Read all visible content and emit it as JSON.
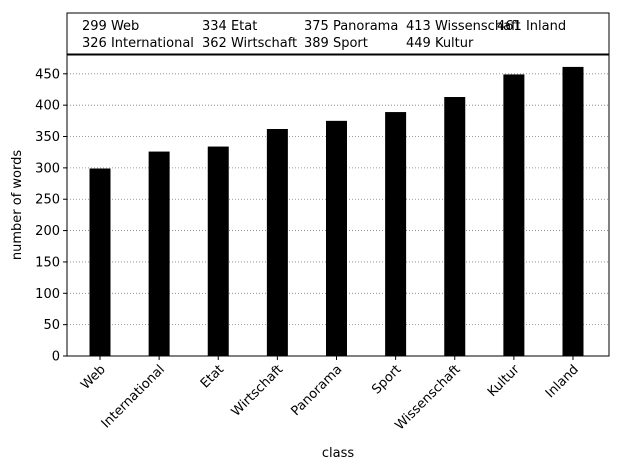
{
  "chart_data": {
    "type": "bar",
    "categories": [
      "Web",
      "International",
      "Etat",
      "Wirtschaft",
      "Panorama",
      "Sport",
      "Wissenschaft",
      "Kultur",
      "Inland"
    ],
    "values": [
      299,
      326,
      334,
      362,
      375,
      389,
      413,
      449,
      461
    ],
    "xlabel": "class",
    "ylabel": "number of words",
    "ylim": [
      0,
      480
    ],
    "yticks": [
      0,
      50,
      100,
      150,
      200,
      250,
      300,
      350,
      400,
      450
    ],
    "grid": "horizontal dotted",
    "legend": {
      "placement": "top",
      "entries": [
        "299 Web",
        "334 Etat",
        "375 Panorama",
        "413 Wissenschaft",
        "461 Inland",
        "326 International",
        "362 Wirtschaft",
        "389 Sport",
        "449 Kultur"
      ]
    },
    "bar_color": "#000000"
  }
}
